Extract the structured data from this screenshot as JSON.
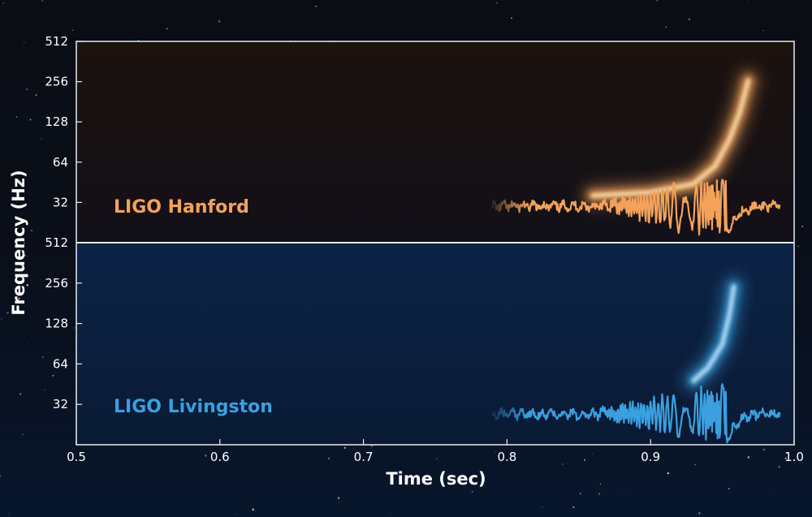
{
  "colors": {
    "hanford": "#f4a25a",
    "livingston": "#3aa0e0",
    "frame": "#e8ecf2",
    "bg_top": "#120e10",
    "bg_bottom": "#0a1a33"
  },
  "chart_data": {
    "type": "heatmap",
    "xlabel": "Time (sec)",
    "ylabel": "Frequency (Hz)",
    "x_ticks": [
      "0.5",
      "0.6",
      "0.7",
      "0.8",
      "0.9",
      "1.0"
    ],
    "x_tick_values": [
      0.5,
      0.6,
      0.7,
      0.8,
      0.9,
      1.0
    ],
    "xlim": [
      0.5,
      1.0
    ],
    "y_scale": "log2",
    "y_ticks": [
      "512",
      "256",
      "128",
      "64",
      "32"
    ],
    "y_tick_values": [
      512,
      256,
      128,
      64,
      32
    ],
    "ylim": [
      16,
      512
    ],
    "panels": [
      {
        "name": "LIGO Hanford",
        "color_key": "hanford",
        "chirp_track": [
          {
            "t": 0.86,
            "f": 36
          },
          {
            "t": 0.9,
            "f": 38
          },
          {
            "t": 0.93,
            "f": 44
          },
          {
            "t": 0.945,
            "f": 60
          },
          {
            "t": 0.955,
            "f": 95
          },
          {
            "t": 0.962,
            "f": 150
          },
          {
            "t": 0.968,
            "f": 260
          }
        ],
        "waveform_t_range": [
          0.79,
          0.99
        ]
      },
      {
        "name": "LIGO Livingston",
        "color_key": "livingston",
        "chirp_track": [
          {
            "t": 0.93,
            "f": 48
          },
          {
            "t": 0.94,
            "f": 60
          },
          {
            "t": 0.95,
            "f": 90
          },
          {
            "t": 0.955,
            "f": 150
          },
          {
            "t": 0.958,
            "f": 240
          }
        ],
        "waveform_t_range": [
          0.79,
          0.99
        ]
      }
    ]
  }
}
